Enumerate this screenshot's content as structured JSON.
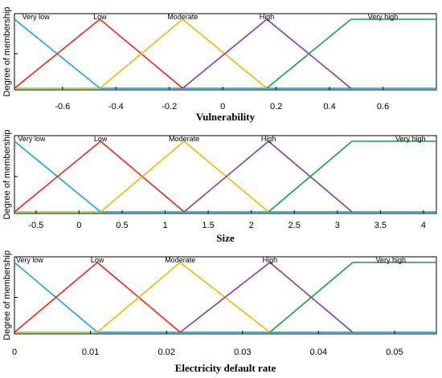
{
  "colors": {
    "very_low": "#1ba1e2",
    "low": "#e8261c",
    "moderate": "#f2b705",
    "high": "#7b3fa3",
    "very_high": "#1a9a4a",
    "baseline": "#8cc63f"
  },
  "chart_data": [
    {
      "type": "line",
      "xlabel": "Vulnerability",
      "ylabel": "Degree of membership",
      "xlim": [
        -0.78,
        0.8
      ],
      "ylim": [
        0,
        1
      ],
      "x_ticks": [
        -0.6,
        -0.4,
        -0.2,
        0,
        0.2,
        0.4,
        0.6
      ],
      "x_tick_labels": [
        "-0.6",
        "-0.4",
        "-0.2",
        "0",
        "0.2",
        "0.4",
        "0.6"
      ],
      "series": [
        {
          "name": "Very low",
          "points": [
            [
              -0.78,
              1
            ],
            [
              -0.46,
              0
            ],
            [
              0.8,
              0
            ]
          ]
        },
        {
          "name": "Low",
          "points": [
            [
              -0.78,
              0
            ],
            [
              -0.46,
              1
            ],
            [
              -0.15,
              0
            ]
          ]
        },
        {
          "name": "Moderate",
          "points": [
            [
              -0.46,
              0
            ],
            [
              -0.15,
              1
            ],
            [
              0.165,
              0
            ]
          ]
        },
        {
          "name": "High",
          "points": [
            [
              -0.15,
              0
            ],
            [
              0.165,
              1
            ],
            [
              0.48,
              0
            ]
          ]
        },
        {
          "name": "Very high",
          "points": [
            [
              0.165,
              0
            ],
            [
              0.48,
              1
            ],
            [
              0.8,
              1
            ]
          ]
        }
      ],
      "label_x": [
        -0.7,
        -0.46,
        -0.15,
        0.165,
        0.6
      ]
    },
    {
      "type": "line",
      "xlabel": "Size",
      "ylabel": "Degree of membership",
      "xlim": [
        -0.75,
        4.15
      ],
      "ylim": [
        0,
        1
      ],
      "x_ticks": [
        -0.5,
        0,
        0.5,
        1,
        1.5,
        2,
        2.5,
        3,
        3.5,
        4
      ],
      "x_tick_labels": [
        "-0.5",
        "0",
        "0.5",
        "1",
        "1.5",
        "2",
        "2.5",
        "3",
        "3.5",
        "4"
      ],
      "series": [
        {
          "name": "Very low",
          "points": [
            [
              -0.75,
              1
            ],
            [
              0.25,
              0
            ],
            [
              4.15,
              0
            ]
          ]
        },
        {
          "name": "Low",
          "points": [
            [
              -0.75,
              0
            ],
            [
              0.25,
              1
            ],
            [
              1.22,
              0
            ]
          ]
        },
        {
          "name": "Moderate",
          "points": [
            [
              0.25,
              0
            ],
            [
              1.22,
              1
            ],
            [
              2.2,
              0
            ]
          ]
        },
        {
          "name": "High",
          "points": [
            [
              1.22,
              0
            ],
            [
              2.2,
              1
            ],
            [
              3.17,
              0
            ]
          ]
        },
        {
          "name": "Very high",
          "points": [
            [
              2.2,
              0
            ],
            [
              3.17,
              1
            ],
            [
              4.15,
              1
            ]
          ]
        }
      ],
      "label_x": [
        -0.55,
        0.25,
        1.22,
        2.2,
        3.85
      ]
    },
    {
      "type": "line",
      "xlabel": "Electricity default rate",
      "ylabel": "Degree of membership",
      "xlim": [
        0,
        0.0555
      ],
      "ylim": [
        0,
        1
      ],
      "x_ticks": [
        0,
        0.01,
        0.02,
        0.03,
        0.04,
        0.05
      ],
      "x_tick_labels": [
        "0",
        "0.01",
        "0.02",
        "0.03",
        "0.04",
        "0.05"
      ],
      "series": [
        {
          "name": "Very low",
          "points": [
            [
              0,
              1
            ],
            [
              0.0109,
              0
            ],
            [
              0.0555,
              0
            ]
          ]
        },
        {
          "name": "Low",
          "points": [
            [
              0,
              0
            ],
            [
              0.0109,
              1
            ],
            [
              0.0218,
              0
            ]
          ]
        },
        {
          "name": "Moderate",
          "points": [
            [
              0.0109,
              0
            ],
            [
              0.0218,
              1
            ],
            [
              0.0336,
              0
            ]
          ]
        },
        {
          "name": "High",
          "points": [
            [
              0.0218,
              0
            ],
            [
              0.0336,
              1
            ],
            [
              0.0445,
              0
            ]
          ]
        },
        {
          "name": "Very high",
          "points": [
            [
              0.0336,
              0
            ],
            [
              0.0445,
              1
            ],
            [
              0.0555,
              1
            ]
          ]
        }
      ],
      "label_x": [
        0.002,
        0.0109,
        0.0218,
        0.0336,
        0.0495
      ]
    }
  ]
}
